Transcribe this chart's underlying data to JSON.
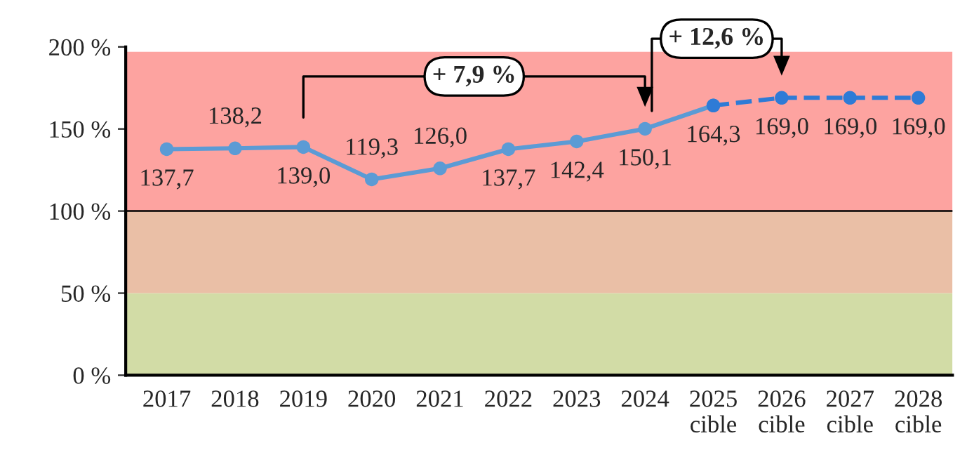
{
  "chart_data": {
    "type": "line",
    "categories": [
      "2017",
      "2018",
      "2019",
      "2020",
      "2021",
      "2022",
      "2023",
      "2024",
      "2025\ncible",
      "2026\ncible",
      "2027\ncible",
      "2028\ncible"
    ],
    "series": [
      {
        "color": "#5b9bd5",
        "line_style": "solid",
        "values": [
          137.7,
          138.2,
          139.0,
          119.3,
          126.0,
          137.7,
          142.4,
          150.1,
          164.3,
          null,
          null,
          null
        ],
        "value_labels": [
          "137,7",
          "138,2",
          "139,0",
          "119,3",
          "126,0",
          "137,7",
          "142,4",
          "150,1",
          "164,3",
          null,
          null,
          null
        ]
      },
      {
        "color": "#2e7bd6",
        "line_style": "dashed",
        "values": [
          null,
          null,
          null,
          null,
          null,
          null,
          null,
          null,
          164.3,
          169.0,
          169.0,
          169.0
        ],
        "value_labels": [
          null,
          null,
          null,
          null,
          null,
          null,
          null,
          null,
          null,
          "169,0",
          "169,0",
          "169,0"
        ]
      }
    ],
    "marker": "circle",
    "ylim": [
      0,
      200
    ],
    "yticks": [
      {
        "value": 0,
        "label": "0 %"
      },
      {
        "value": 50,
        "label": "50 %"
      },
      {
        "value": 100,
        "label": "100 %"
      },
      {
        "value": 150,
        "label": "150 %"
      },
      {
        "value": 200,
        "label": "200 %"
      }
    ],
    "grid": false,
    "legend": false,
    "ref_lines": [
      {
        "axis": "y",
        "value": 100,
        "color": "#000000"
      }
    ],
    "bands": [
      {
        "axis": "y",
        "from": 0,
        "to": 50,
        "color": "#d2dca6"
      },
      {
        "axis": "y",
        "from": 50,
        "to": 100,
        "color": "#eabfa6"
      },
      {
        "axis": "y",
        "from": 100,
        "to": 197,
        "color": "#fda3a0"
      }
    ],
    "annotations": [
      "+ 7,9 %",
      "+ 12,6 %"
    ]
  }
}
